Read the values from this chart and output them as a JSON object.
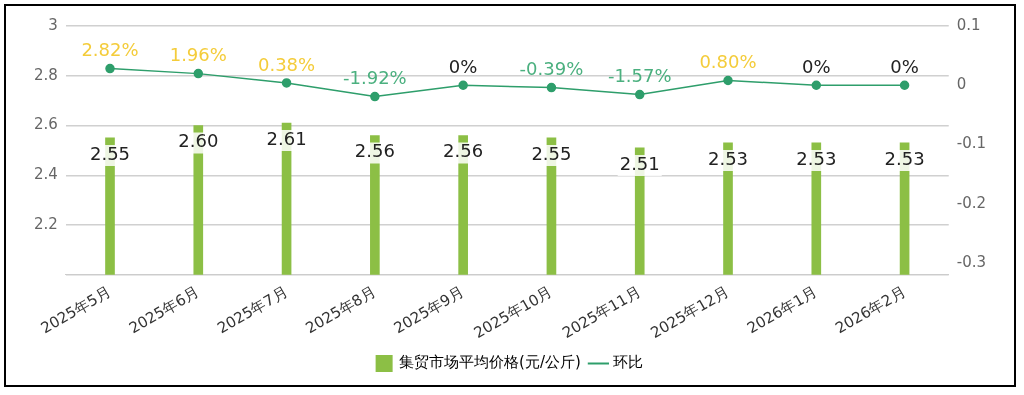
{
  "chart_data": {
    "type": "bar",
    "categories": [
      "2025年5月",
      "2025年6月",
      "2025年7月",
      "2025年8月",
      "2025年9月",
      "2025年10月",
      "2025年11月",
      "2025年12月",
      "2026年1月",
      "2026年2月"
    ],
    "series": [
      {
        "name": "集贸市场平均价格(元/公斤)",
        "color": "#8cbf45",
        "values": [
          2.55,
          2.6,
          2.61,
          2.56,
          2.56,
          2.55,
          2.51,
          2.53,
          2.53,
          2.53
        ],
        "value_labels": [
          "2.55",
          "2.60",
          "2.61",
          "2.56",
          "2.56",
          "2.55",
          "2.51",
          "2.53",
          "2.53",
          "2.53"
        ]
      },
      {
        "name": "环比",
        "type": "line",
        "axis": "y2",
        "color": "#2e9e6b",
        "values": [
          0.0282,
          0.0196,
          0.0038,
          -0.0192,
          0,
          -0.0039,
          -0.0157,
          0.008,
          0,
          0
        ],
        "value_labels": [
          "2.82%",
          "1.96%",
          "0.38%",
          "-1.92%",
          "0%",
          "-0.39%",
          "-1.57%",
          "0.80%",
          "0%",
          "0%"
        ]
      }
    ],
    "ylim": [
      2,
      3
    ],
    "yticks": [
      {
        "value": 2,
        "label": null
      },
      2.2,
      2.4,
      2.6,
      2.8,
      3
    ],
    "y2lim": [
      -0.32,
      0.1
    ],
    "y2ticks": [
      -0.3,
      -0.2,
      -0.1,
      0,
      0.1
    ],
    "grid": "y",
    "legend": "bottom",
    "marker": "circle",
    "line_style": "solid"
  }
}
